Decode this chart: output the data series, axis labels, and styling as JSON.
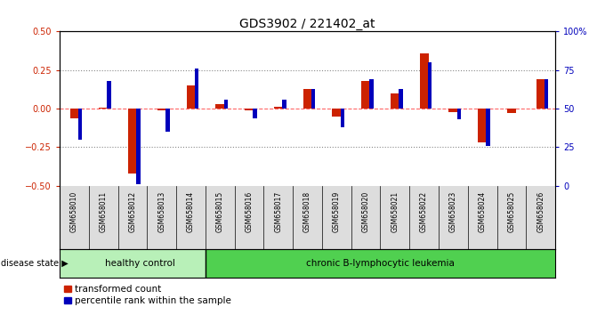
{
  "title": "GDS3902 / 221402_at",
  "samples": [
    "GSM658010",
    "GSM658011",
    "GSM658012",
    "GSM658013",
    "GSM658014",
    "GSM658015",
    "GSM658016",
    "GSM658017",
    "GSM658018",
    "GSM658019",
    "GSM658020",
    "GSM658021",
    "GSM658022",
    "GSM658023",
    "GSM658024",
    "GSM658025",
    "GSM658026"
  ],
  "red_values": [
    -0.06,
    0.005,
    -0.42,
    -0.01,
    0.15,
    0.03,
    -0.01,
    0.01,
    0.13,
    -0.05,
    0.18,
    0.1,
    0.36,
    -0.02,
    -0.22,
    -0.03,
    0.19
  ],
  "blue_pct": [
    30,
    68,
    1,
    35,
    76,
    56,
    44,
    56,
    63,
    38,
    69,
    63,
    80,
    43,
    26,
    50,
    69
  ],
  "healthy_count": 5,
  "disease_labels": [
    "healthy control",
    "chronic B-lymphocytic leukemia"
  ],
  "healthy_color": "#b8f0b8",
  "leukemia_color": "#50d050",
  "ylim": [
    -0.5,
    0.5
  ],
  "y_ticks": [
    -0.5,
    -0.25,
    0,
    0.25,
    0.5
  ],
  "y2_ticks": [
    0,
    25,
    50,
    75,
    100
  ],
  "red_color": "#CC2200",
  "blue_color": "#0000BB",
  "dotted_color": "#888888",
  "zero_line_color": "#FF6666",
  "legend_red": "transformed count",
  "legend_blue": "percentile rank within the sample",
  "bg_color": "#DDDDDD"
}
